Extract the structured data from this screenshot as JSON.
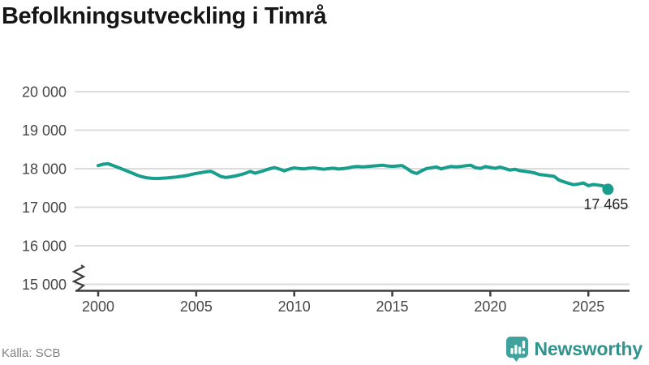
{
  "header": {
    "title": "Befolkningsutveckling i Timrå"
  },
  "footer": {
    "source": "Källa: SCB",
    "brand": "Newsworthy"
  },
  "colors": {
    "line": "#189e8c",
    "grid": "#dcdcdc",
    "axis": "#3f3f3f",
    "tick_label": "#474747",
    "end_label": "#262626",
    "brand_icon": "#3fa29c",
    "brand_text": "#2f938e",
    "title_text": "#161616",
    "source_text": "#828282"
  },
  "chart_data": {
    "type": "line",
    "title": "Befolkningsutveckling i Timrå",
    "xlabel": "",
    "ylabel": "",
    "grid": true,
    "legend": "none",
    "axis_break": true,
    "xlim": [
      1998.8,
      2027.1
    ],
    "ylim_visible": [
      15000,
      20000
    ],
    "x_ticks": [
      {
        "value": 2000,
        "label": "2000"
      },
      {
        "value": 2005,
        "label": "2005"
      },
      {
        "value": 2010,
        "label": "2010"
      },
      {
        "value": 2015,
        "label": "2015"
      },
      {
        "value": 2020,
        "label": "2020"
      },
      {
        "value": 2025,
        "label": "2025"
      }
    ],
    "y_ticks": [
      {
        "value": 20000,
        "label": "20 000"
      },
      {
        "value": 19000,
        "label": "19 000"
      },
      {
        "value": 18000,
        "label": "18 000"
      },
      {
        "value": 17000,
        "label": "17 000"
      },
      {
        "value": 16000,
        "label": "16 000"
      },
      {
        "value": 15000,
        "label": "15 000"
      }
    ],
    "end_label": "17 465",
    "end_value": 17465,
    "series": [
      {
        "name": "Befolkning",
        "x": [
          2000,
          2000.25,
          2000.5,
          2000.75,
          2001,
          2001.25,
          2001.5,
          2001.75,
          2002,
          2002.25,
          2002.5,
          2002.75,
          2003,
          2003.25,
          2003.5,
          2003.75,
          2004,
          2004.25,
          2004.5,
          2004.75,
          2005,
          2005.25,
          2005.5,
          2005.75,
          2006,
          2006.25,
          2006.5,
          2006.75,
          2007,
          2007.25,
          2007.5,
          2007.75,
          2008,
          2008.25,
          2008.5,
          2008.75,
          2009,
          2009.25,
          2009.5,
          2009.75,
          2010,
          2010.25,
          2010.5,
          2010.75,
          2011,
          2011.25,
          2011.5,
          2011.75,
          2012,
          2012.25,
          2012.5,
          2012.75,
          2013,
          2013.25,
          2013.5,
          2013.75,
          2014,
          2014.25,
          2014.5,
          2014.75,
          2015,
          2015.25,
          2015.5,
          2015.75,
          2016,
          2016.25,
          2016.5,
          2016.75,
          2017,
          2017.25,
          2017.5,
          2017.75,
          2018,
          2018.25,
          2018.5,
          2018.75,
          2019,
          2019.25,
          2019.5,
          2019.75,
          2020,
          2020.25,
          2020.5,
          2020.75,
          2021,
          2021.25,
          2021.5,
          2021.75,
          2022,
          2022.25,
          2022.5,
          2022.75,
          2023,
          2023.25,
          2023.5,
          2023.75,
          2024,
          2024.25,
          2024.5,
          2024.75,
          2025,
          2025.25,
          2025.5,
          2025.75,
          2026
        ],
        "values": [
          18080,
          18115,
          18130,
          18085,
          18035,
          17985,
          17935,
          17885,
          17830,
          17790,
          17762,
          17750,
          17745,
          17752,
          17760,
          17772,
          17785,
          17802,
          17822,
          17850,
          17878,
          17900,
          17920,
          17932,
          17870,
          17800,
          17772,
          17790,
          17812,
          17845,
          17880,
          17930,
          17885,
          17920,
          17958,
          18000,
          18030,
          17990,
          17945,
          17992,
          18022,
          18005,
          17995,
          18012,
          18022,
          18002,
          17988,
          18002,
          18012,
          17992,
          18002,
          18022,
          18048,
          18058,
          18048,
          18060,
          18070,
          18080,
          18090,
          18072,
          18062,
          18072,
          18082,
          18005,
          17915,
          17875,
          17948,
          18005,
          18025,
          18045,
          17995,
          18030,
          18058,
          18048,
          18060,
          18075,
          18090,
          18025,
          18008,
          18055,
          18032,
          18010,
          18040,
          18005,
          17965,
          17985,
          17950,
          17935,
          17915,
          17890,
          17850,
          17835,
          17820,
          17805,
          17705,
          17660,
          17620,
          17585,
          17605,
          17630,
          17560,
          17590,
          17575,
          17555,
          17465
        ]
      }
    ]
  }
}
